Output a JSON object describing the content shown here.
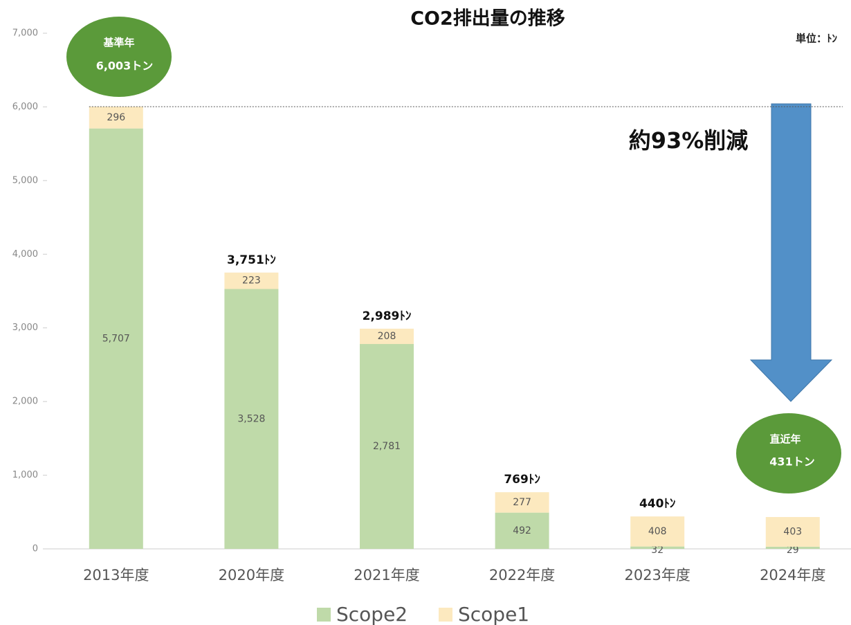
{
  "chart_data": {
    "type": "stacked_bar",
    "title": "CO2排出量の推移",
    "unit_label": "単位：ﾄﾝ",
    "categories": [
      "2013年度",
      "2020年度",
      "2021年度",
      "2022年度",
      "2023年度",
      "2024年度"
    ],
    "series": [
      {
        "name": "Scope2",
        "color": "#bfdaa9",
        "values": [
          5707,
          3528,
          2781,
          492,
          32,
          29
        ],
        "value_labels": [
          "5,707",
          "3,528",
          "2,781",
          "492",
          "32",
          "29"
        ]
      },
      {
        "name": "Scope1",
        "color": "#fce9bf",
        "values": [
          296,
          223,
          208,
          277,
          408,
          403
        ]
      }
    ],
    "total_labels": [
      null,
      "3,751ﾄﾝ",
      "2,989ﾄﾝ",
      "769ﾄﾝ",
      "440ﾄﾝ",
      null
    ],
    "baseline_badge": {
      "title": "基準年",
      "value": "6,003トン"
    },
    "latest_badge": {
      "title": "直近年",
      "value": "431トン"
    },
    "reduction_label": "約93%削減",
    "ylim": [
      0,
      7000
    ],
    "yticks": [
      0,
      {
        "value": 1000,
        "label": "1,000"
      },
      {
        "value": 2000,
        "label": "2,000"
      },
      {
        "value": 3000,
        "label": "3,000"
      },
      {
        "value": 4000,
        "label": "4,000"
      },
      {
        "value": 5000,
        "label": "5,000"
      },
      {
        "value": 6000,
        "label": "6,000"
      },
      {
        "value": 7000,
        "label": "7,000"
      }
    ],
    "legend": "bottom"
  }
}
